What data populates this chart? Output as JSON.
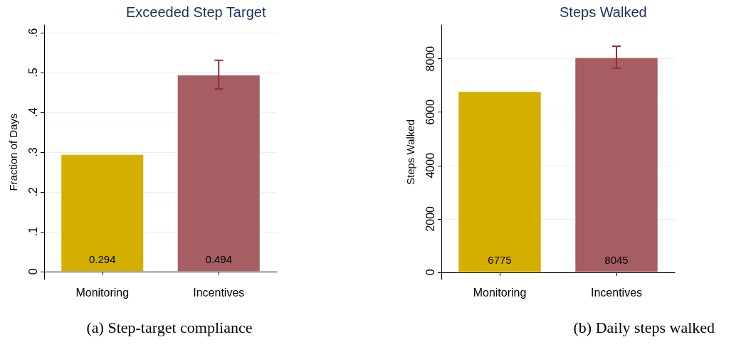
{
  "chart_data": [
    {
      "type": "bar",
      "title": "Exceeded Step Target",
      "ylabel": "Fraction of Days",
      "categories": [
        "Monitoring",
        "Incentives"
      ],
      "values": [
        0.294,
        0.494
      ],
      "colors": [
        "#d4af00",
        "#a65e63"
      ],
      "errors": [
        null,
        [
          0.459,
          0.531
        ]
      ],
      "ylim": [
        -0.02,
        0.62
      ],
      "yticks": [
        {
          "value": 0,
          "label": "0"
        },
        {
          "value": 0.1,
          "label": ".1"
        },
        {
          "value": 0.2,
          "label": ".2"
        },
        {
          "value": 0.3,
          "label": ".3"
        },
        {
          "value": 0.4,
          "label": ".4"
        },
        {
          "value": 0.5,
          "label": ".5"
        },
        {
          "value": 0.6,
          "label": ".6"
        }
      ],
      "grid": "y",
      "data_labels": true,
      "annotations": [
        "(a) Step-target compliance"
      ]
    },
    {
      "type": "bar",
      "title": "Steps Walked",
      "ylabel": "Steps Walked",
      "categories": [
        "Monitoring",
        "Incentives"
      ],
      "values": [
        6775,
        8045
      ],
      "colors": [
        "#d4af00",
        "#a65e63"
      ],
      "errors": [
        null,
        [
          7645,
          8470
        ]
      ],
      "ylim": [
        -270,
        9270
      ],
      "yticks": [
        0,
        2000,
        4000,
        6000,
        8000
      ],
      "grid": "y",
      "data_labels": true,
      "annotations": [
        "(b) Daily steps walked"
      ]
    }
  ]
}
